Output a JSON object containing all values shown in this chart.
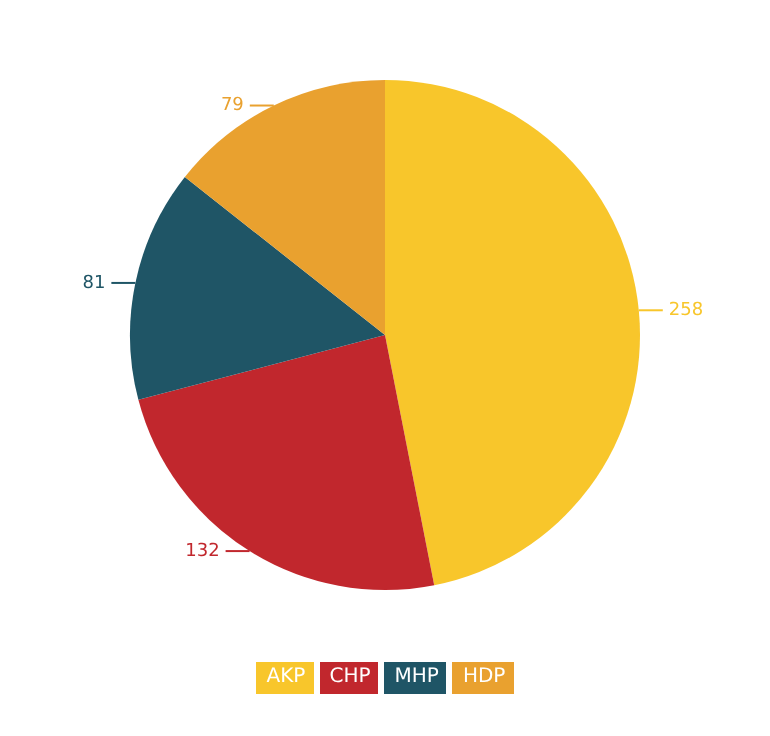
{
  "chart_data": {
    "type": "pie",
    "categories": [
      "AKP",
      "CHP",
      "MHP",
      "HDP"
    ],
    "values": [
      258,
      132,
      81,
      79
    ],
    "colors": [
      "#f8c62b",
      "#c1272d",
      "#1f5566",
      "#e9a12f"
    ],
    "data_labels": true,
    "legend": "bottom"
  }
}
